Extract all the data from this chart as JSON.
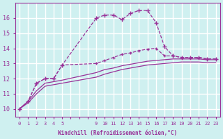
{
  "xlabel": "Windchill (Refroidissement éolien,°C)",
  "bg_color": "#cff0f0",
  "grid_color": "#ffffff",
  "line_color": "#993399",
  "ylim": [
    9.5,
    17.0
  ],
  "xlim": [
    -0.5,
    23.5
  ],
  "y_ticks": [
    10,
    11,
    12,
    13,
    14,
    15,
    16
  ],
  "x_ticks_all": [
    0,
    1,
    2,
    3,
    4,
    5,
    6,
    7,
    8,
    9,
    10,
    11,
    12,
    13,
    14,
    15,
    16,
    17,
    18,
    19,
    20,
    21,
    22,
    23
  ],
  "x_tick_labels_all": [
    "0",
    "1",
    "2",
    "3",
    "4",
    "5",
    "",
    "",
    "",
    "9",
    "10",
    "11",
    "12",
    "13",
    "14",
    "15",
    "16",
    "17",
    "18",
    "19",
    "20",
    "21",
    "22",
    "23"
  ],
  "series1_x": [
    0,
    1,
    2,
    3,
    4,
    5,
    9,
    10,
    11,
    12,
    13,
    14,
    15,
    16,
    17,
    18,
    19,
    20,
    21,
    22,
    23
  ],
  "series1_y": [
    10.0,
    10.5,
    11.7,
    12.0,
    12.0,
    12.9,
    16.0,
    16.2,
    16.2,
    15.9,
    16.3,
    16.5,
    16.5,
    15.7,
    14.1,
    13.5,
    13.4,
    13.4,
    13.4,
    13.3,
    13.3
  ],
  "series2_x": [
    0,
    1,
    2,
    3,
    4,
    5,
    9,
    10,
    11,
    12,
    13,
    14,
    15,
    16,
    17,
    18,
    19,
    20,
    21,
    22,
    23
  ],
  "series2_y": [
    10.0,
    10.5,
    11.7,
    12.0,
    12.0,
    12.9,
    13.0,
    13.2,
    13.4,
    13.6,
    13.7,
    13.85,
    13.95,
    14.0,
    13.5,
    13.5,
    13.4,
    13.4,
    13.4,
    13.3,
    13.3
  ],
  "series3_x": [
    0,
    1,
    2,
    3,
    4,
    5,
    9,
    10,
    11,
    12,
    13,
    14,
    15,
    16,
    17,
    18,
    19,
    20,
    21,
    22,
    23
  ],
  "series3_y": [
    10.0,
    10.5,
    11.2,
    11.7,
    11.8,
    11.9,
    12.4,
    12.6,
    12.7,
    12.85,
    12.95,
    13.05,
    13.15,
    13.2,
    13.25,
    13.3,
    13.3,
    13.3,
    13.3,
    13.25,
    13.25
  ],
  "series4_x": [
    0,
    1,
    2,
    3,
    4,
    5,
    9,
    10,
    11,
    12,
    13,
    14,
    15,
    16,
    17,
    18,
    19,
    20,
    21,
    22,
    23
  ],
  "series4_y": [
    10.0,
    10.4,
    11.0,
    11.5,
    11.6,
    11.7,
    12.1,
    12.3,
    12.45,
    12.6,
    12.7,
    12.8,
    12.9,
    12.95,
    13.0,
    13.05,
    13.1,
    13.1,
    13.1,
    13.05,
    13.05
  ]
}
